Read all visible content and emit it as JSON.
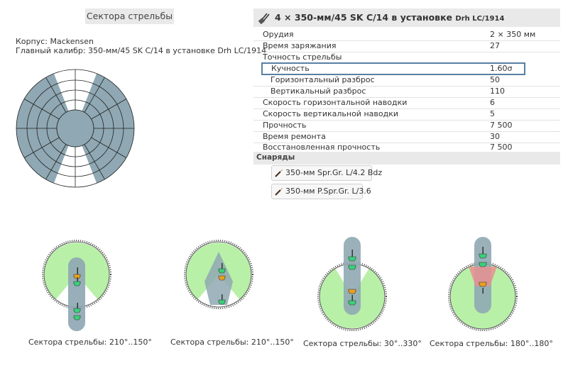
{
  "left_panel": {
    "title": "Сектора стрельбы",
    "hull_label": "Корпус: Mackensen",
    "main_caliber_label": "Главный калибр: 350-мм/45 SK C/14 в установке Drh LC/1914"
  },
  "gun_panel": {
    "title_prefix": "4 × 350-мм/45 SK C/14 в установке ",
    "title_suffix": "Drh LC/1914",
    "rows": [
      {
        "label": "Орудия",
        "value": "2 × 350 мм"
      },
      {
        "label": "Время заряжания",
        "value": "27"
      },
      {
        "label": "Точность стрельбы",
        "value": ""
      },
      {
        "label": "Кучность",
        "value": "1.60σ"
      },
      {
        "label": "Горизонтальный разброс",
        "value": "50"
      },
      {
        "label": "Вертикальный разброс",
        "value": "110"
      },
      {
        "label": "Скорость горизонтальной наводки",
        "value": "6"
      },
      {
        "label": "Скорость вертикальной наводки",
        "value": "5"
      },
      {
        "label": "Прочность",
        "value": "7 500"
      },
      {
        "label": "Время ремонта",
        "value": "30"
      },
      {
        "label": "Восстановленная прочность",
        "value": "7 500"
      }
    ],
    "ammo_header": "Снаряды",
    "shells": [
      {
        "label": "350-мм Spr.Gr. L/4.2 Bdz"
      },
      {
        "label": "350-мм P.Spr.Gr. L/3.6"
      }
    ]
  },
  "turrets": [
    {
      "caption": "Сектора стрельбы: 210°..150°"
    },
    {
      "caption": "Сектора стрельбы: 210°..150°"
    },
    {
      "caption": "Сектора стрельбы: 30°..330°"
    },
    {
      "caption": "Сектора стрельбы: 180°..180°"
    }
  ],
  "colors": {
    "sector_fill": "#8fa8b3",
    "arc_green": "#b8f0a8",
    "dead_zone": "#e89090",
    "highlight_border": "#5a7fa3",
    "turret_green": "#3ad07a",
    "turret_orange": "#e8a020"
  }
}
